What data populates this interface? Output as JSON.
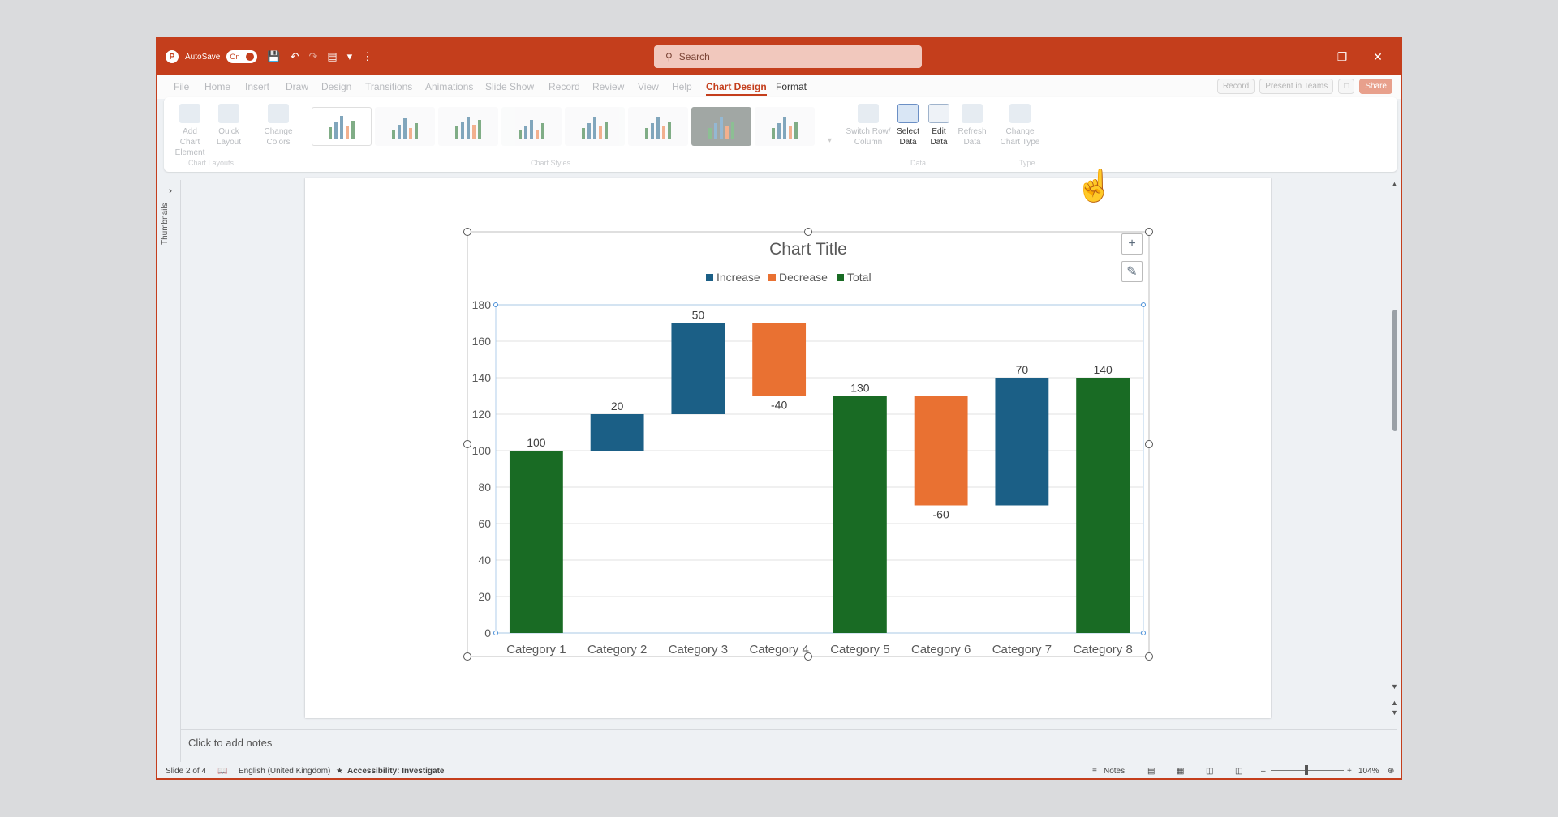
{
  "titlebar": {
    "autosave_label": "AutoSave",
    "autosave_state": "On",
    "search_placeholder": "Search"
  },
  "ribbon_tabs": [
    "File",
    "Home",
    "Insert",
    "Draw",
    "Design",
    "Transitions",
    "Animations",
    "Slide Show",
    "Record",
    "Review",
    "View",
    "Help",
    "Chart Design",
    "Format"
  ],
  "active_tab": "Chart Design",
  "ribbon_right": {
    "record": "Record",
    "present_teams": "Present in Teams",
    "share": "Share"
  },
  "ribbon": {
    "add_chart_element": "Add Chart Element",
    "quick_layout": "Quick Layout",
    "change_colors": "Change Colors",
    "switch_row_column": "Switch Row/ Column",
    "select_data": "Select Data",
    "edit_data": "Edit Data",
    "refresh_data": "Refresh Data",
    "change_chart_type": "Change Chart Type",
    "group_chart_layouts": "Chart Layouts",
    "group_chart_styles": "Chart Styles",
    "group_data": "Data",
    "group_type": "Type"
  },
  "left_rail": {
    "label": "Thumbnails"
  },
  "notes_placeholder": "Click to add notes",
  "status": {
    "slide": "Slide 2 of 4",
    "language": "English (United Kingdom)",
    "accessibility": "Accessibility: Investigate",
    "notes": "Notes",
    "zoom": "104%"
  },
  "colors": {
    "accent": "#c43e1c",
    "increase": "#1b5f86",
    "decrease": "#e97132",
    "total": "#196b24"
  },
  "chart_data": {
    "type": "bar",
    "subtype": "waterfall",
    "title": "Chart Title",
    "legend": [
      "Increase",
      "Decrease",
      "Total"
    ],
    "legend_position": "top",
    "categories": [
      "Category 1",
      "Category 2",
      "Category 3",
      "Category 4",
      "Category 5",
      "Category 6",
      "Category 7",
      "Category 8"
    ],
    "values": [
      100,
      20,
      50,
      -40,
      130,
      -60,
      70,
      140
    ],
    "kinds": [
      "Total",
      "Increase",
      "Increase",
      "Decrease",
      "Total",
      "Decrease",
      "Increase",
      "Total"
    ],
    "bar_base": [
      0,
      100,
      120,
      130,
      0,
      70,
      70,
      0
    ],
    "bar_top": [
      100,
      120,
      170,
      170,
      130,
      130,
      140,
      140
    ],
    "data_labels": [
      "100",
      "20",
      "50",
      "-40",
      "130",
      "-60",
      "70",
      "140"
    ],
    "yticks": [
      "0",
      "20",
      "40",
      "60",
      "80",
      "100",
      "120",
      "140",
      "160",
      "180"
    ],
    "ylim": [
      0,
      180
    ],
    "grid": true
  }
}
